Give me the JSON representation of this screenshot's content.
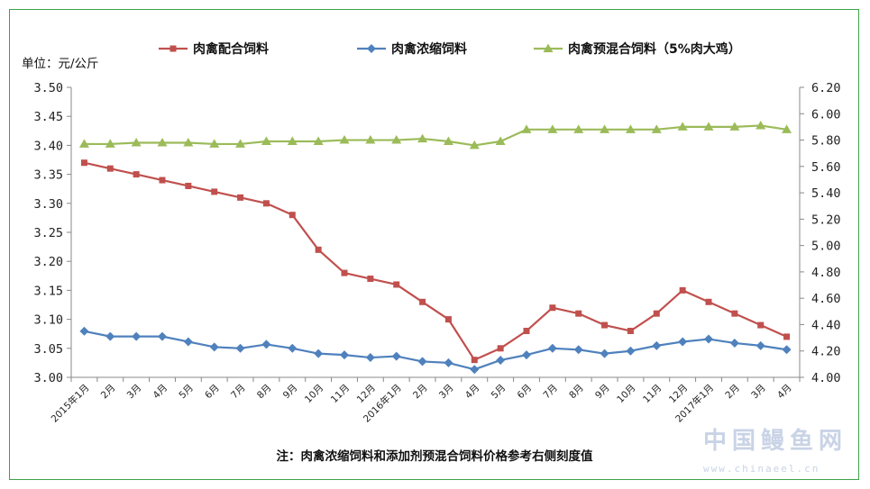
{
  "chart_data": {
    "type": "line",
    "unit_label": "单位：元/公斤",
    "note": "注：肉禽浓缩饲料和添加剂预混合饲料价格参考右侧刻度值",
    "left_axis": {
      "min": 3.0,
      "max": 3.5,
      "step": 0.05,
      "tick_labels": [
        "3.50",
        "3.45",
        "3.40",
        "3.35",
        "3.30",
        "3.25",
        "3.20",
        "3.15",
        "3.10",
        "3.05",
        "3.00"
      ]
    },
    "right_axis": {
      "min": 4.0,
      "max": 6.2,
      "step": 0.2,
      "tick_labels": [
        "6.20",
        "6.00",
        "5.80",
        "5.60",
        "5.40",
        "5.20",
        "5.00",
        "4.80",
        "4.60",
        "4.40",
        "4.20",
        "4.00"
      ]
    },
    "categories": [
      "2015年1月",
      "2月",
      "3月",
      "4月",
      "5月",
      "6月",
      "7月",
      "8月",
      "9月",
      "10月",
      "11月",
      "12月",
      "2016年1月",
      "2月",
      "3月",
      "4月",
      "5月",
      "6月",
      "7月",
      "8月",
      "9月",
      "10月",
      "11月",
      "12月",
      "2017年1月",
      "2月",
      "3月",
      "4月"
    ],
    "legend_position": "top",
    "series": [
      {
        "name": "肉禽配合饲料",
        "axis": "left",
        "color": "#c0504d",
        "marker": "square",
        "values": [
          3.37,
          3.36,
          3.35,
          3.34,
          3.33,
          3.32,
          3.31,
          3.3,
          3.28,
          3.22,
          3.18,
          3.17,
          3.16,
          3.13,
          3.1,
          3.03,
          3.05,
          3.08,
          3.12,
          3.11,
          3.09,
          3.08,
          3.11,
          3.15,
          3.13,
          3.11,
          3.09,
          3.07
        ]
      },
      {
        "name": "肉禽浓缩饲料",
        "axis": "right",
        "color": "#4f81bd",
        "marker": "diamond",
        "values": [
          4.35,
          4.31,
          4.31,
          4.31,
          4.27,
          4.23,
          4.22,
          4.25,
          4.22,
          4.18,
          4.17,
          4.15,
          4.16,
          4.12,
          4.11,
          4.06,
          4.13,
          4.17,
          4.22,
          4.21,
          4.18,
          4.2,
          4.24,
          4.27,
          4.29,
          4.26,
          4.24,
          4.21
        ]
      },
      {
        "name": "肉禽预混合饲料（5%肉大鸡）",
        "axis": "right",
        "color": "#9bbb59",
        "marker": "triangle",
        "values": [
          5.77,
          5.77,
          5.78,
          5.78,
          5.78,
          5.77,
          5.77,
          5.79,
          5.79,
          5.79,
          5.8,
          5.8,
          5.8,
          5.81,
          5.79,
          5.76,
          5.79,
          5.88,
          5.88,
          5.88,
          5.88,
          5.88,
          5.88,
          5.9,
          5.9,
          5.9,
          5.91,
          5.88
        ]
      }
    ]
  },
  "watermark": {
    "text": "中国鳗鱼网",
    "url": "www.chinaeel.cn"
  }
}
